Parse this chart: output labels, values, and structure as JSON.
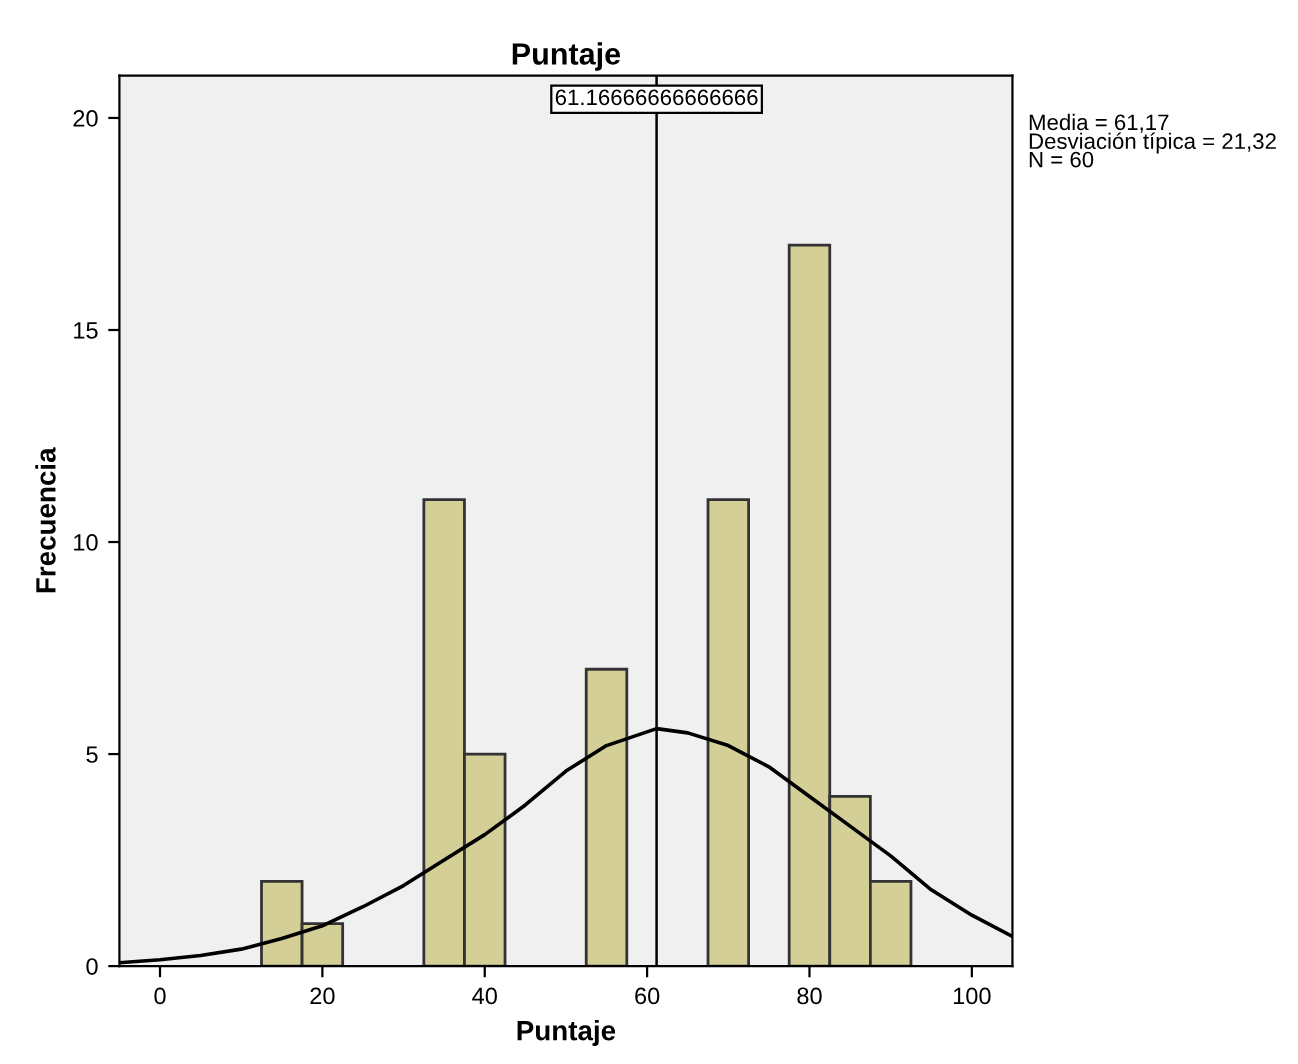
{
  "chart_data": {
    "type": "histogram",
    "title": "Puntaje",
    "xlabel": "Puntaje",
    "ylabel": "Frecuencia",
    "bins": [
      12.5,
      17.5,
      22.5,
      27.5,
      32.5,
      37.5,
      42.5,
      47.5,
      52.5,
      57.5,
      62.5,
      67.5,
      72.5,
      77.5,
      82.5,
      87.5,
      92.5
    ],
    "values": [
      2,
      1,
      0,
      0,
      11,
      5,
      0,
      0,
      7,
      0,
      0,
      11,
      0,
      17,
      4,
      2
    ],
    "color": "#d3cf96",
    "series": [
      {
        "type": "line",
        "color": "#000000",
        "x": [
          -5,
          0,
          5,
          10,
          15,
          20,
          25,
          30,
          35,
          40,
          45,
          50,
          55,
          61.17,
          65,
          70,
          75,
          80,
          85,
          90,
          95,
          100,
          105
        ],
        "values": [
          0.08,
          0.15,
          0.25,
          0.4,
          0.65,
          0.95,
          1.4,
          1.9,
          2.5,
          3.1,
          3.8,
          4.6,
          5.2,
          5.6,
          5.5,
          5.2,
          4.7,
          4.0,
          3.3,
          2.6,
          1.8,
          1.2,
          0.7
        ]
      }
    ],
    "ref_lines": [
      {
        "axis": "x",
        "value": 61.16666666666666,
        "label": "61.16666666666666",
        "color": "#000000"
      }
    ],
    "annotations": [
      "Media = 61,17",
      "Desviación típica = 21,32",
      "N = 60"
    ],
    "xlim": [
      -5,
      105
    ],
    "ylim": [
      0,
      21
    ],
    "xticks": [
      0,
      20,
      40,
      60,
      80,
      100
    ],
    "yticks": [
      0,
      5,
      10,
      15,
      20
    ],
    "grid": false,
    "legend": false
  }
}
